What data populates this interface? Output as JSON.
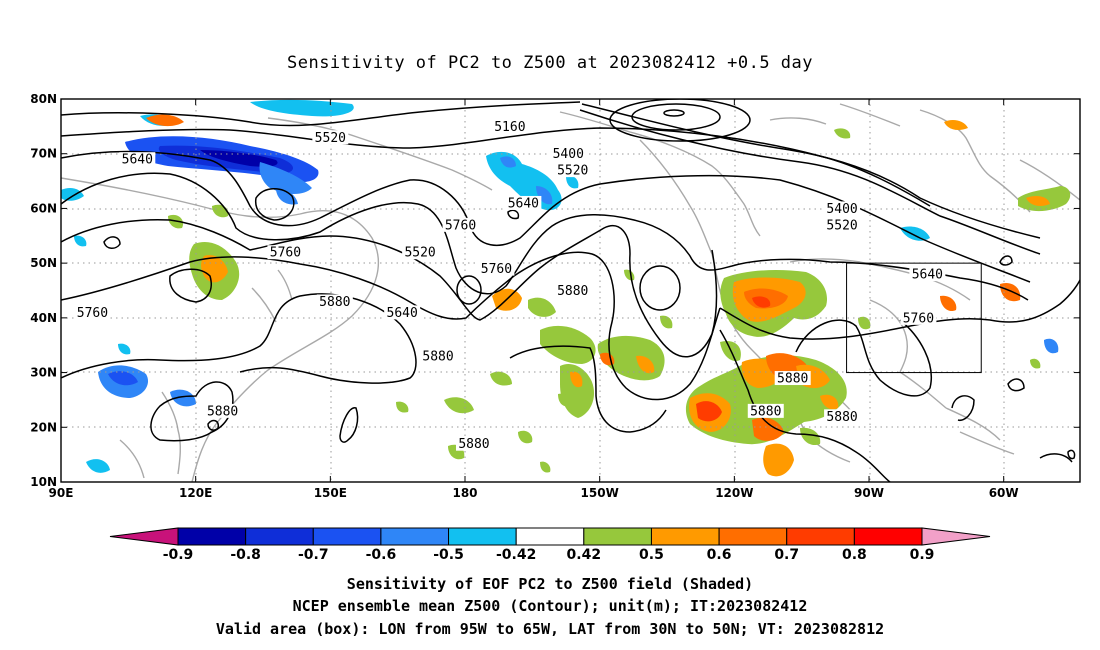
{
  "title": "Sensitivity of PC2 to Z500 at 2023082412 +0.5 day",
  "axes": {
    "lon_ticks": [
      "90E",
      "120E",
      "150E",
      "180",
      "150W",
      "120W",
      "90W",
      "60W"
    ],
    "lat_ticks": [
      "10N",
      "20N",
      "30N",
      "40N",
      "50N",
      "60N",
      "70N",
      "80N"
    ]
  },
  "colorbar": {
    "labels": [
      "-0.9",
      "-0.8",
      "-0.7",
      "-0.6",
      "-0.5",
      "-0.42",
      "0.42",
      "0.5",
      "0.6",
      "0.7",
      "0.8",
      "0.9"
    ],
    "colors": [
      "#0000a8",
      "#0f2ed8",
      "#1b52f2",
      "#2f86f7",
      "#12c0f0",
      "#ffffff",
      "#96c83c",
      "#ff9a00",
      "#ff6e00",
      "#ff3c00",
      "#ff0000"
    ],
    "left_tip_color": "#c8127a",
    "right_tip_color": "#f2a0c8"
  },
  "contour_labels": [
    {
      "text": "5520",
      "lon": 150,
      "lat": 73
    },
    {
      "text": "5640",
      "lon": 107,
      "lat": 69
    },
    {
      "text": "5160",
      "lon": 190,
      "lat": 75
    },
    {
      "text": "5400",
      "lon": 203,
      "lat": 70
    },
    {
      "text": "5520",
      "lon": 204,
      "lat": 67
    },
    {
      "text": "5640",
      "lon": 193,
      "lat": 61
    },
    {
      "text": "5760",
      "lon": 179,
      "lat": 57
    },
    {
      "text": "5520",
      "lon": 170,
      "lat": 52
    },
    {
      "text": "5760",
      "lon": 187,
      "lat": 49
    },
    {
      "text": "5760",
      "lon": 140,
      "lat": 52
    },
    {
      "text": "5880",
      "lon": 151,
      "lat": 43
    },
    {
      "text": "5760",
      "lon": 97,
      "lat": 41
    },
    {
      "text": "5640",
      "lon": 166,
      "lat": 41
    },
    {
      "text": "5880",
      "lon": 204,
      "lat": 45
    },
    {
      "text": "5880",
      "lon": 174,
      "lat": 33
    },
    {
      "text": "5880",
      "lon": 182,
      "lat": 17
    },
    {
      "text": "5880",
      "lon": 126,
      "lat": 23
    },
    {
      "text": "5880",
      "lon": 264,
      "lat": 22
    },
    {
      "text": "5880",
      "lon": 253,
      "lat": 29
    },
    {
      "text": "5400",
      "lon": 264,
      "lat": 60
    },
    {
      "text": "5520",
      "lon": 264,
      "lat": 57
    },
    {
      "text": "5640",
      "lon": 283,
      "lat": 48
    },
    {
      "text": "5760",
      "lon": 281,
      "lat": 40
    },
    {
      "text": "5880",
      "lon": 247,
      "lat": 23
    }
  ],
  "valid_box": {
    "lon_min": 265,
    "lon_max": 295,
    "lat_min": 30,
    "lat_max": 50
  },
  "footer": [
    "Sensitivity of EOF PC2 to Z500 field (Shaded)",
    "NCEP ensemble mean Z500 (Contour); unit(m); IT:2023082412",
    "Valid area (box): LON from 95W to 65W, LAT from 30N to 50N; VT: 2023082812"
  ]
}
